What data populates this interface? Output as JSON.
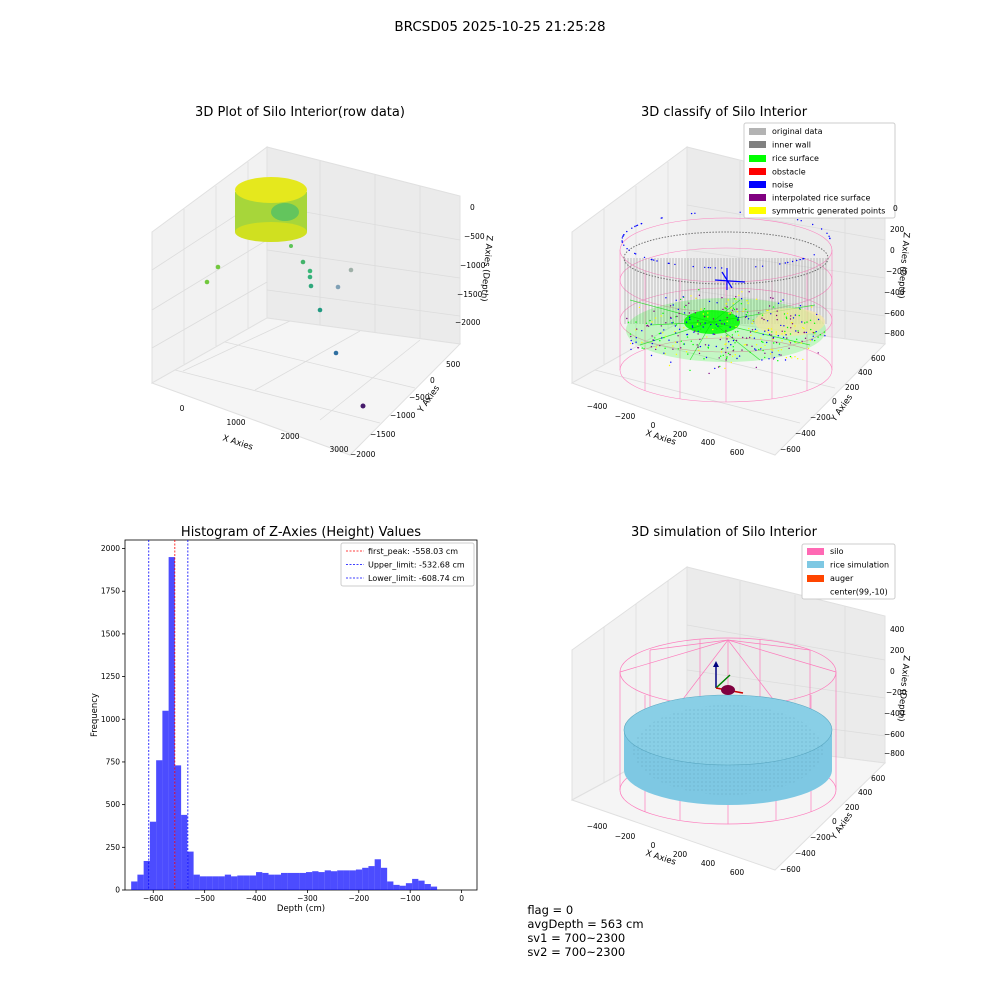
{
  "figure_title": "BRCSD05 2025-10-25 21:25:28",
  "footer": {
    "flag": "flag = 0",
    "avg_depth": "avgDepth = 563 cm",
    "sv1": "sv1 = 700~2300",
    "sv2": "sv2 = 700~2300"
  },
  "colors": {
    "original": "#b3b3b3",
    "inner_wall": "#808080",
    "rice_surface": "#00ff00",
    "obstacle": "#ff0000",
    "noise": "#0000ff",
    "interpolated": "#800080",
    "symmetric": "#ffff00",
    "silo": "#ff69b4",
    "rice_sim": "#7ec8e3",
    "auger": "#ff4500",
    "hist_bar": "#0000ff"
  },
  "chart_data": [
    {
      "type": "scatter",
      "title": "3D Plot of Silo Interior(row data)",
      "xlabel": "X Axies",
      "ylabel": "Y Axies",
      "zlabel": "Z Axies (Depth)",
      "x_ticks": [
        "0",
        "1000",
        "2000",
        "3000"
      ],
      "y_ticks": [
        "500",
        "0",
        "−500",
        "−1000",
        "−1500",
        "−2000"
      ],
      "z_ticks": [
        "0",
        "−500",
        "−1000",
        "−1500",
        "−2000"
      ]
    },
    {
      "type": "scatter",
      "title": "3D classify of Silo Interior",
      "xlabel": "X Axies",
      "ylabel": "Y Axies",
      "zlabel": "Z Axies (Depth)",
      "x_ticks": [
        "−400",
        "−200",
        "0",
        "200",
        "400",
        "600"
      ],
      "y_ticks": [
        "600",
        "400",
        "200",
        "0",
        "−200",
        "−400",
        "−600"
      ],
      "z_ticks": [
        "200",
        "0",
        "−200",
        "−400",
        "−600",
        "−800"
      ],
      "z_tick_partial": "0",
      "legend": [
        "original data",
        "inner wall",
        "rice surface",
        "obstacle",
        "noise",
        "interpolated rice surface",
        "symmetric generated points"
      ],
      "legend_placement": "top-right"
    },
    {
      "type": "bar",
      "title": "Histogram of Z-Axies (Height) Values",
      "xlabel": "Depth (cm)",
      "ylabel": "Frequency",
      "xlim": [
        -655,
        30
      ],
      "ylim": [
        0,
        2050
      ],
      "x_ticks": [
        -600,
        -500,
        -400,
        -300,
        -200,
        -100,
        0
      ],
      "x_tick_labels": [
        "−600",
        "−500",
        "−400",
        "−300",
        "−200",
        "−100",
        "0"
      ],
      "y_ticks": [
        0,
        250,
        500,
        750,
        1000,
        1250,
        1500,
        1750,
        2000
      ],
      "bin_start": -643,
      "bin_width": 12.15,
      "values": [
        50,
        90,
        170,
        400,
        760,
        1050,
        1950,
        730,
        440,
        225,
        90,
        80,
        80,
        80,
        80,
        90,
        80,
        85,
        85,
        85,
        105,
        100,
        90,
        90,
        100,
        100,
        100,
        100,
        105,
        110,
        105,
        115,
        110,
        115,
        115,
        115,
        120,
        130,
        140,
        180,
        130,
        50,
        30,
        25,
        40,
        65,
        55,
        35,
        20
      ],
      "lines": [
        {
          "label": "first_peak: -558.03 cm",
          "x": -558.03,
          "color": "#ff0000"
        },
        {
          "label": "Upper_limit: -532.68 cm",
          "x": -532.68,
          "color": "#0000ff"
        },
        {
          "label": "Lower_limit: -608.74 cm",
          "x": -608.74,
          "color": "#0000ff"
        }
      ],
      "legend_placement": "top-right"
    },
    {
      "type": "scatter",
      "title": "3D simulation of Silo Interior",
      "xlabel": "X Axies",
      "ylabel": "Y Axies",
      "zlabel": "Z Axies (Depth)",
      "x_ticks": [
        "−400",
        "−200",
        "0",
        "200",
        "400",
        "600"
      ],
      "y_ticks": [
        "600",
        "400",
        "200",
        "0",
        "−200",
        "−400",
        "−600"
      ],
      "z_ticks": [
        "400",
        "200",
        "0",
        "−200",
        "−400",
        "−600",
        "−800"
      ],
      "legend": [
        "silo",
        "rice simulation",
        "auger",
        "center(99,-10)"
      ],
      "legend_placement": "top-right"
    }
  ]
}
